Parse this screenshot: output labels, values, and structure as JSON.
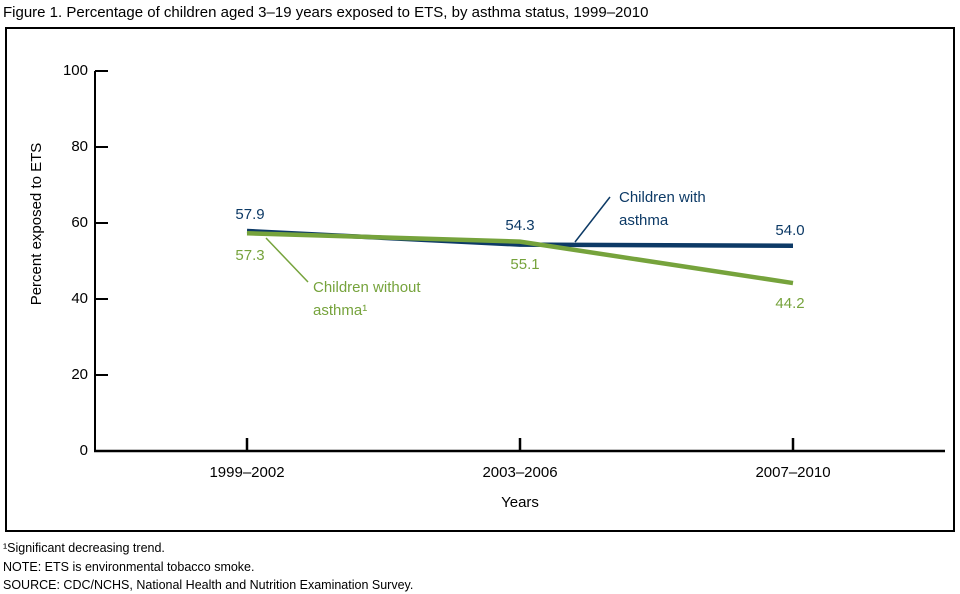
{
  "title": "Figure 1. Percentage of children aged 3–19 years exposed to ETS, by asthma status, 1999–2010",
  "chart_data": {
    "type": "line",
    "title": "Figure 1. Percentage of children aged 3–19 years exposed to ETS, by asthma status, 1999–2010",
    "xlabel": "Years",
    "ylabel": "Percent exposed to ETS",
    "ylim": [
      0,
      100
    ],
    "yticks": [
      0,
      20,
      40,
      60,
      80,
      100
    ],
    "categories": [
      "1999–2002",
      "2003–2006",
      "2007–2010"
    ],
    "series": [
      {
        "name": "Children with asthma",
        "color": "#0d3a66",
        "values": [
          57.9,
          54.3,
          54.0
        ],
        "labels": [
          "57.9",
          "54.3",
          "54.0"
        ]
      },
      {
        "name": "Children without asthma",
        "color": "#76a33c",
        "values": [
          57.3,
          55.1,
          44.2
        ],
        "labels": [
          "57.3",
          "55.1",
          "44.2"
        ]
      }
    ],
    "grid": false,
    "legend_position": "inline-annotations"
  },
  "annotations": {
    "with_asthma": {
      "line1": "Children with",
      "line2": "asthma"
    },
    "without_asthma": {
      "line1": "Children without",
      "line2": "asthma¹"
    }
  },
  "footnotes": {
    "note1": "¹Significant decreasing trend.",
    "note2": "NOTE: ETS is environmental tobacco smoke.",
    "note3": "SOURCE: CDC/NCHS, National Health and Nutrition Examination Survey."
  },
  "colors": {
    "with_asthma": "#0d3a66",
    "without_asthma": "#76a33c",
    "axis": "#000000",
    "background": "#ffffff"
  }
}
